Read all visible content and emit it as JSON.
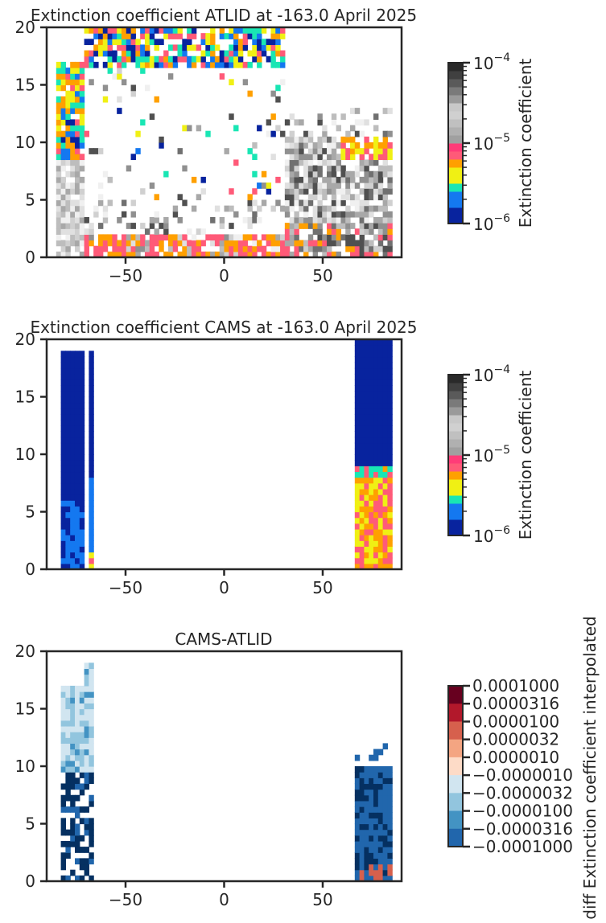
{
  "chart_data": [
    {
      "type": "heatmap",
      "title": "Extinction coefficient ATLID at -163.0 April 2025",
      "xticks": [
        "−50",
        "0",
        "50"
      ],
      "yticks": [
        "0",
        "5",
        "10",
        "15",
        "20"
      ],
      "xlim": [
        -90,
        90
      ],
      "ylim": [
        0,
        20
      ],
      "colorbar": {
        "label": "Extinction coefficient",
        "scale": "log",
        "range": [
          1e-06,
          0.0001
        ],
        "ticks": [
          "10",
          "10"
        ],
        "tick_exponents": [
          "−6",
          "−5",
          "−4"
        ],
        "tick_base": "10",
        "colors": [
          "#08239e",
          "#1478f0",
          "#19e6b4",
          "#f0f014",
          "#ffa000",
          "#ff5a78",
          "#c8c8c8"
        ]
      },
      "description_values": "ATLID retrieved extinction curtain, values ~1e-6 to 1e-4"
    },
    {
      "type": "heatmap",
      "title": "Extinction coefficient CAMS at -163.0 April 2025",
      "xticks": [
        "−50",
        "0",
        "50"
      ],
      "yticks": [
        "0",
        "5",
        "10",
        "15",
        "20"
      ],
      "xlim": [
        -90,
        90
      ],
      "ylim": [
        0,
        20
      ],
      "colorbar": {
        "label": "Extinction coefficient",
        "scale": "log",
        "range": [
          1e-06,
          0.0001
        ],
        "tick_exponents": [
          "−6",
          "−5",
          "−4"
        ],
        "tick_base": "10"
      }
    },
    {
      "type": "heatmap",
      "title": "CAMS-ATLID",
      "xticks": [
        "−50",
        "0",
        "50"
      ],
      "yticks": [
        "0",
        "5",
        "10",
        "15",
        "20"
      ],
      "xlim": [
        -90,
        90
      ],
      "ylim": [
        0,
        20
      ],
      "colorbar": {
        "label": "diff Extinction coefficient interpolated",
        "ticks": [
          "0.0001000",
          "0.0000316",
          "0.0000100",
          "0.0000032",
          "0.0000010",
          "−0.0000010",
          "−0.0000032",
          "−0.0000100",
          "−0.0000316",
          "−0.0001000"
        ],
        "colors": [
          "#67001f",
          "#b2182b",
          "#d6604d",
          "#f4a582",
          "#fddbc7",
          "#d1e5f0",
          "#92c5de",
          "#4393c3",
          "#2166ac",
          "#053061"
        ]
      }
    }
  ],
  "colors": {
    "atlid_blue_dark": "#08239e",
    "atlid_blue": "#1478f0",
    "atlid_green": "#19e6b4",
    "atlid_yellow": "#f0f014",
    "atlid_orange": "#ffa000",
    "atlid_pink": "#ff5a78",
    "atlid_grey": "#bdbdbd",
    "diff_dark_blue": "#053061",
    "diff_mid_blue": "#2166ac"
  }
}
